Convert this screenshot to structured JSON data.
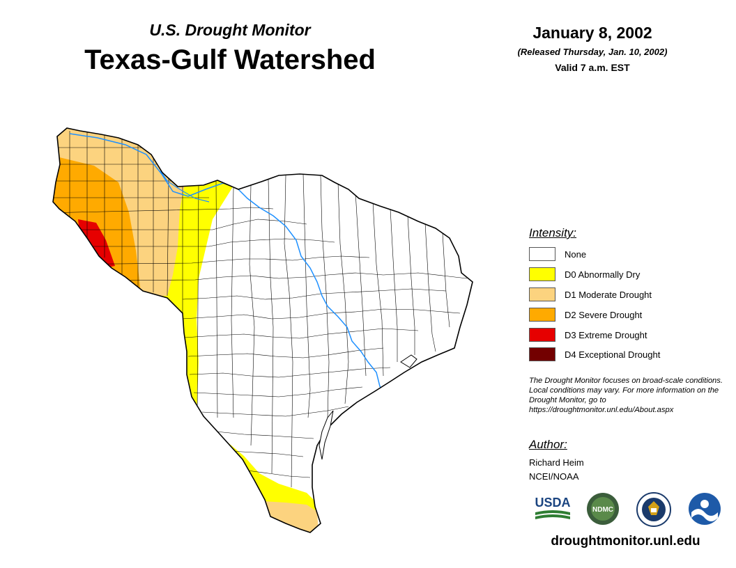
{
  "header": {
    "subtitle": "U.S. Drought Monitor",
    "title": "Texas-Gulf Watershed",
    "date": "January 8, 2002",
    "released": "(Released Thursday, Jan. 10, 2002)",
    "valid": "Valid 7 a.m. EST"
  },
  "legend": {
    "title": "Intensity:",
    "items": [
      {
        "label": "None",
        "color": "#ffffff"
      },
      {
        "label": "D0 Abnormally Dry",
        "color": "#ffff00"
      },
      {
        "label": "D1 Moderate Drought",
        "color": "#fcd37f"
      },
      {
        "label": "D2 Severe Drought",
        "color": "#ffaa00"
      },
      {
        "label": "D3 Extreme Drought",
        "color": "#e60000"
      },
      {
        "label": "D4 Exceptional Drought",
        "color": "#730000"
      }
    ]
  },
  "note": "The Drought Monitor focuses on broad-scale conditions. Local conditions may vary. For more information on the Drought Monitor, go to https://droughtmonitor.unl.edu/About.aspx",
  "author": {
    "heading": "Author:",
    "name": "Richard Heim",
    "org": "NCEI/NOAA"
  },
  "logos": {
    "usda": "USDA",
    "ndmc": "NDMC",
    "noaa": "NOAA"
  },
  "footer": {
    "site": "droughtmonitor.unl.edu"
  },
  "colors": {
    "river": "#1e90ff",
    "county_line": "#000000"
  }
}
